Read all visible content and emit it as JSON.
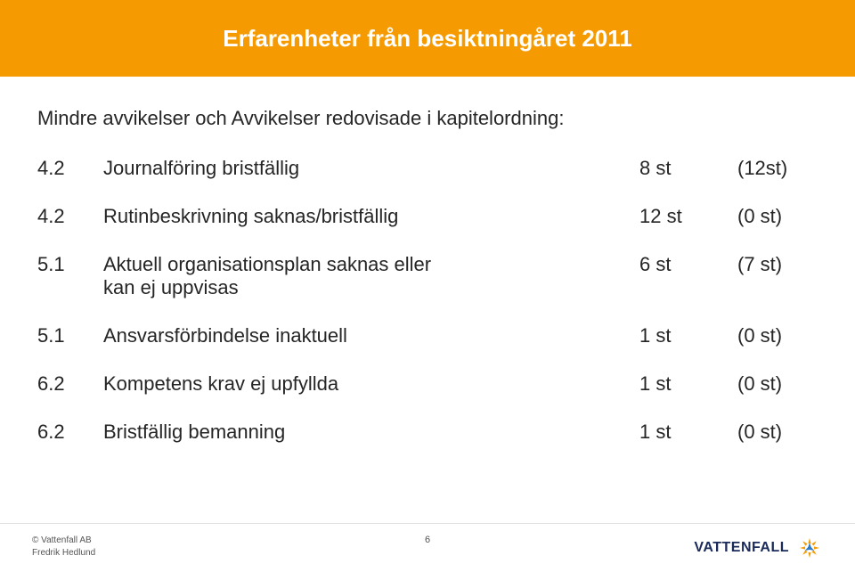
{
  "title": {
    "text": "Erfarenheter från besiktningåret 2011",
    "color": "#ffffff",
    "bar_color": "#f59a00",
    "font_size": 26,
    "font_weight": 700
  },
  "intro": {
    "text": "Mindre avvikelser och Avvikelser redovisade i kapitelordning:",
    "font_size": 22,
    "color": "#252525"
  },
  "table": {
    "font_size": 22,
    "row_gap": 28,
    "rows": [
      {
        "num": "4.2",
        "text": "Journalföring bristfällig",
        "v1": "8 st",
        "v2": "(12st)"
      },
      {
        "num": "4.2",
        "text": "Rutinbeskrivning saknas/bristfällig",
        "v1": "12 st",
        "v2": "(0 st)"
      },
      {
        "num": "5.1",
        "text": "Aktuell organisationsplan saknas eller\nkan ej uppvisas",
        "v1": "6 st",
        "v2": "(7 st)"
      },
      {
        "num": "5.1",
        "text": "Ansvarsförbindelse inaktuell",
        "v1": "1 st",
        "v2": "(0 st)"
      },
      {
        "num": "6.2",
        "text": "Kompetens krav ej upfyllda",
        "v1": "1 st",
        "v2": "(0 st)"
      },
      {
        "num": "6.2",
        "text": "Bristfällig bemanning",
        "v1": "1 st",
        "v2": "(0 st)"
      }
    ]
  },
  "footer": {
    "copyright_line1": "© Vattenfall AB",
    "copyright_line2": "Fredrik Hedlund",
    "page_number": "6",
    "brand_text": "VATTENFALL",
    "brand_color": "#1a2a5a",
    "brand_font_size": 16,
    "logo": {
      "outer_color": "#f59a00",
      "inner_color": "#2d78c8",
      "size": 30
    }
  },
  "page": {
    "background": "#ffffff"
  }
}
